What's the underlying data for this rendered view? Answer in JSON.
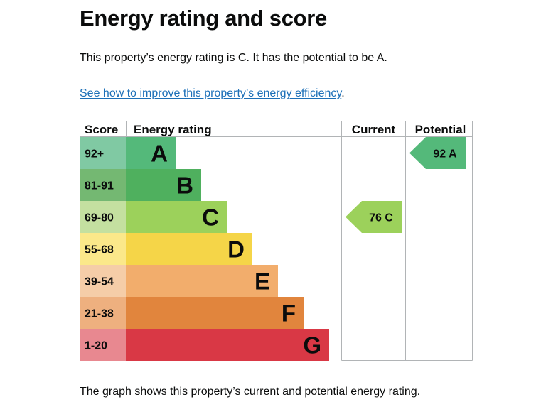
{
  "page": {
    "title": "Energy rating and score",
    "intro": "This property’s energy rating is C. It has the potential to be A.",
    "improve_link": "See how to improve this property’s energy efficiency",
    "improve_suffix": ".",
    "caption": "The graph shows this property’s current and potential energy rating."
  },
  "chart_data": {
    "type": "bar",
    "headers": {
      "score": "Score",
      "rating": "Energy rating",
      "current": "Current",
      "potential": "Potential"
    },
    "bands": [
      {
        "range": "92+",
        "letter": "A",
        "score_color": "#80c9a3",
        "bar_color": "#54b97a"
      },
      {
        "range": "81-91",
        "letter": "B",
        "score_color": "#74b872",
        "bar_color": "#4fb05e"
      },
      {
        "range": "69-80",
        "letter": "C",
        "score_color": "#c4e0a0",
        "bar_color": "#9cd15b"
      },
      {
        "range": "55-68",
        "letter": "D",
        "score_color": "#fbe88a",
        "bar_color": "#f5d548"
      },
      {
        "range": "39-54",
        "letter": "E",
        "score_color": "#f5cda8",
        "bar_color": "#f2ad6c"
      },
      {
        "range": "21-38",
        "letter": "F",
        "score_color": "#eeb07f",
        "bar_color": "#e1853d"
      },
      {
        "range": "1-20",
        "letter": "G",
        "score_color": "#e88890",
        "bar_color": "#d93845"
      }
    ],
    "current": {
      "label": "76 C",
      "score": 76,
      "letter": "C",
      "color": "#9cd15b"
    },
    "potential": {
      "label": "92 A",
      "score": 92,
      "letter": "A",
      "color": "#54b97a"
    }
  }
}
